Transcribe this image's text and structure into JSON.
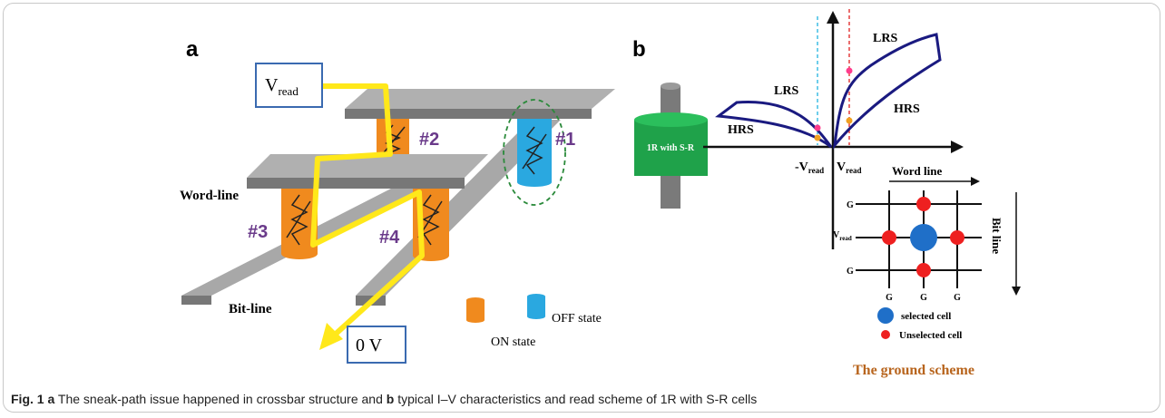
{
  "panel_a": {
    "label": "a",
    "vread": {
      "text": "V",
      "sub": "read"
    },
    "cells": [
      "#1",
      "#2",
      "#3",
      "#4"
    ],
    "word_line": "Word-line",
    "bit_line": "Bit-line",
    "ground": "0 V",
    "legend": [
      "OFF state",
      "ON state"
    ]
  },
  "panel_b": {
    "label": "b",
    "device": "1R with S-R",
    "curve_labels": [
      "LRS",
      "LRS",
      "HRS",
      "HRS"
    ],
    "neg_vread": {
      "text": "-V",
      "sub": "read"
    },
    "pos_vread": {
      "text": "V",
      "sub": "read"
    },
    "word_line": "Word line",
    "bit_line": "Bit line",
    "row_labels": [
      "G",
      {
        "text": "V",
        "sub": "read"
      },
      "G"
    ],
    "column_labels": [
      "G",
      "G",
      "G"
    ],
    "legend": [
      "selected cell",
      "Unselected cell"
    ],
    "scheme_title": "The ground scheme"
  },
  "caption": {
    "figure": "Fig. 1",
    "part_a": "a",
    "text_a": "The sneak-path issue happened in crossbar structure and",
    "part_b": "b",
    "text_b": "typical I–V characteristics and read scheme of 1R with S-R cells"
  }
}
